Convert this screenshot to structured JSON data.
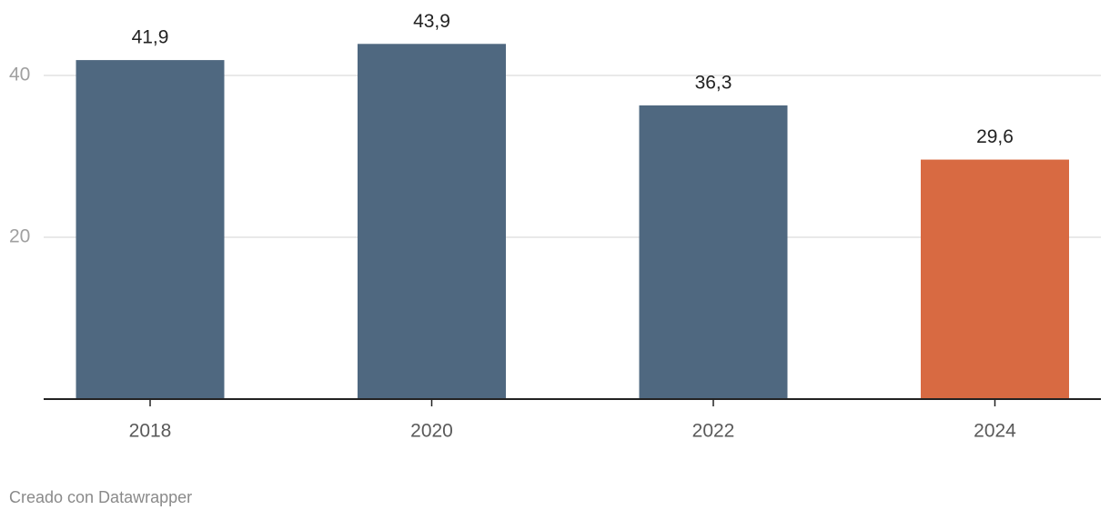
{
  "chart_data": {
    "type": "bar",
    "categories": [
      "2018",
      "2020",
      "2022",
      "2024"
    ],
    "values": [
      41.9,
      43.9,
      36.3,
      29.6
    ],
    "value_labels": [
      "41,9",
      "43,9",
      "36,3",
      "29,6"
    ],
    "colors": [
      "#4f6880",
      "#4f6880",
      "#4f6880",
      "#d86a42"
    ],
    "ylim": [
      0,
      45
    ],
    "yticks": [
      20,
      40
    ],
    "grid": true,
    "footer": "Creado con Datawrapper"
  }
}
